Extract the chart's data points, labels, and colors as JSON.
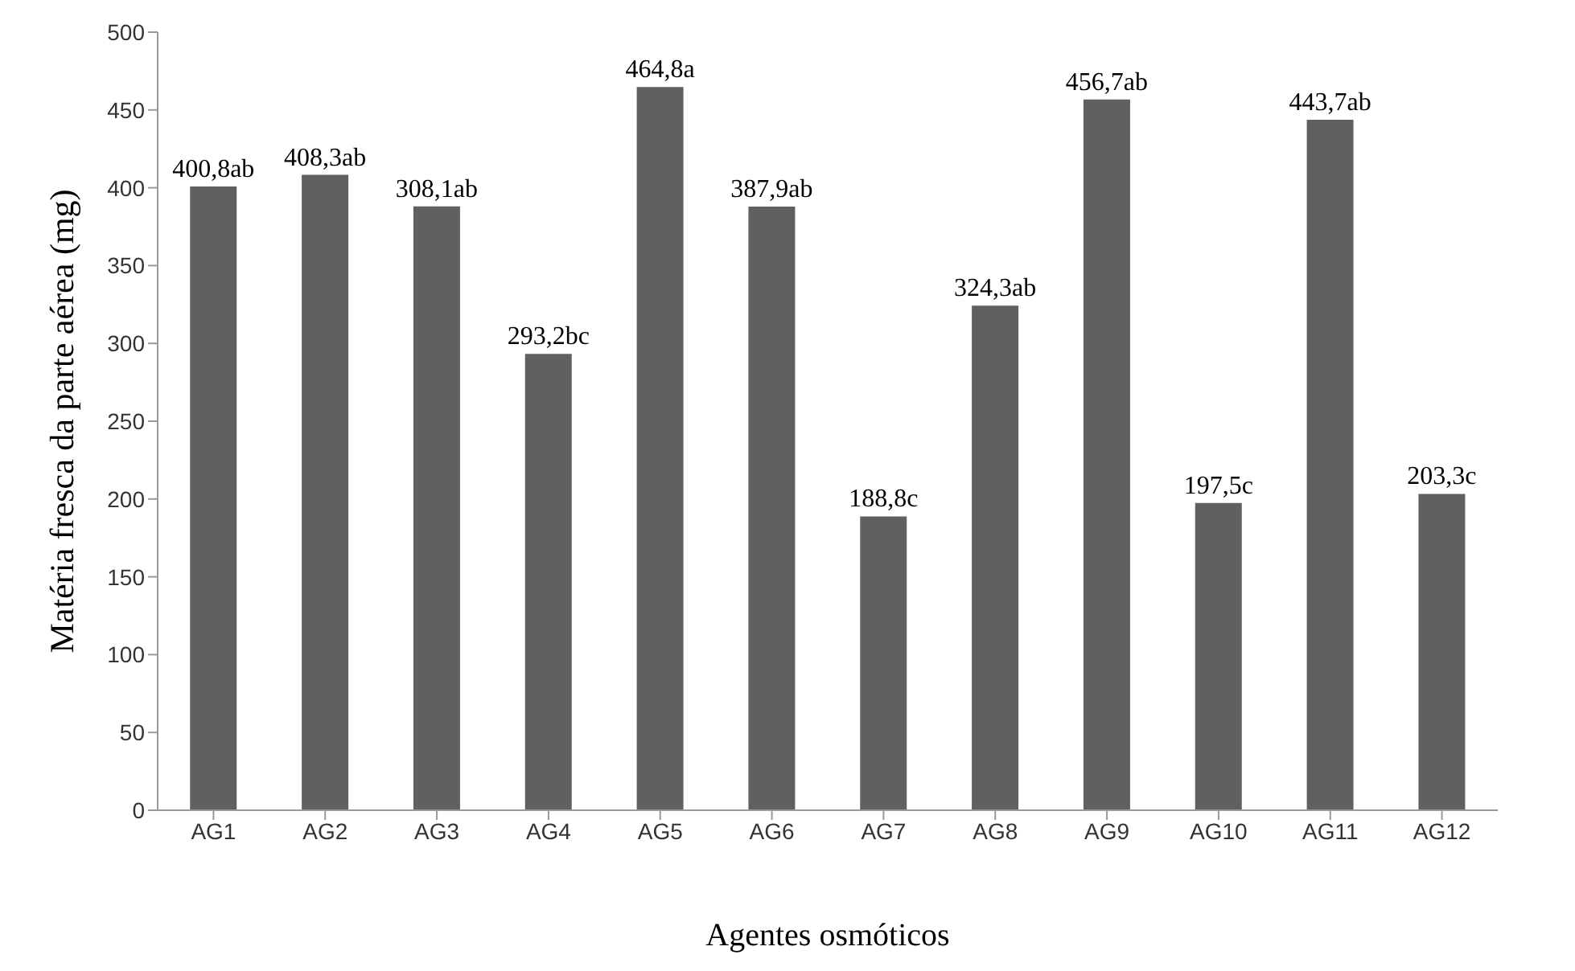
{
  "chart_data": {
    "type": "bar",
    "xlabel": "Agentes osmóticos",
    "ylabel": "Matéria fresca da parte aérea (mg)",
    "categories": [
      "AG1",
      "AG2",
      "AG3",
      "AG4",
      "AG5",
      "AG6",
      "AG7",
      "AG8",
      "AG9",
      "AG10",
      "AG11",
      "AG12"
    ],
    "values": [
      400.8,
      408.3,
      388,
      293.2,
      464.8,
      387.9,
      188.8,
      324.3,
      456.7,
      197.5,
      443.7,
      203.3
    ],
    "annotations": [
      {
        "text": "308,1ab",
        "x": "AG3",
        "y": 388
      }
    ],
    "value_labels": [
      "400,8ab",
      "408,3ab",
      null,
      "293,2bc",
      "464,8a",
      "387,9ab",
      "188,8c",
      "324,3ab",
      "456,7ab",
      "197,5c",
      "443,7ab",
      "203,3c"
    ],
    "color": "#606060",
    "ylim": [
      0,
      500
    ],
    "yticks": [
      0,
      50,
      100,
      150,
      200,
      250,
      300,
      350,
      400,
      450,
      500
    ],
    "grid": false,
    "legend": false
  }
}
